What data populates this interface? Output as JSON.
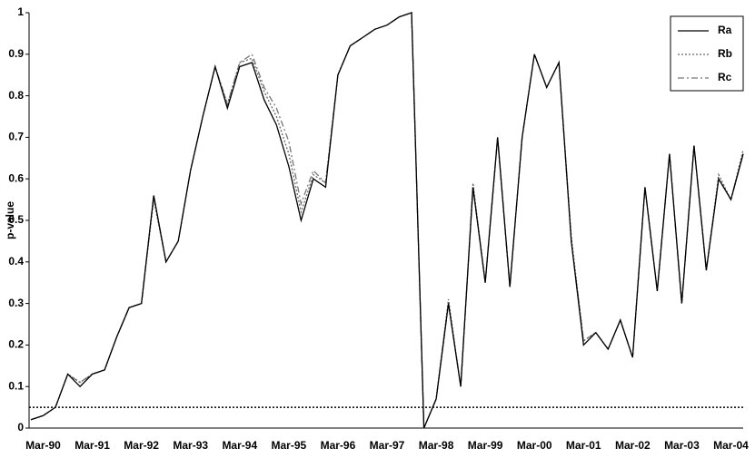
{
  "chart_data": {
    "type": "line",
    "y_label": "p-value",
    "categories": [
      null,
      "Mar-90",
      null,
      null,
      null,
      "Mar-91",
      null,
      null,
      null,
      "Mar-92",
      null,
      null,
      null,
      "Mar-93",
      null,
      null,
      null,
      "Mar-94",
      null,
      null,
      null,
      "Mar-95",
      null,
      null,
      null,
      "Mar-96",
      null,
      null,
      null,
      "Mar-97",
      null,
      null,
      null,
      "Mar-98",
      null,
      null,
      null,
      "Mar-99",
      null,
      null,
      null,
      "Mar-00",
      null,
      null,
      null,
      "Mar-01",
      null,
      null,
      null,
      "Mar-02",
      null,
      null,
      null,
      "Mar-03",
      null,
      null,
      null,
      "Mar-04",
      null
    ],
    "series": [
      {
        "name": "Ra",
        "color": "#000000",
        "dash": "solid",
        "values": [
          0.02,
          0.03,
          0.05,
          0.13,
          0.1,
          0.13,
          0.14,
          0.22,
          0.29,
          0.3,
          0.56,
          0.4,
          0.45,
          0.62,
          0.75,
          0.87,
          0.77,
          0.87,
          0.88,
          0.79,
          0.73,
          0.63,
          0.5,
          0.6,
          0.58,
          0.85,
          0.92,
          0.94,
          0.96,
          0.97,
          0.99,
          1.0,
          0.0,
          0.07,
          0.3,
          0.1,
          0.58,
          0.35,
          0.7,
          0.34,
          0.7,
          0.9,
          0.82,
          0.88,
          0.45,
          0.2,
          0.23,
          0.19,
          0.26,
          0.17,
          0.58,
          0.33,
          0.66,
          0.3,
          0.68,
          0.38,
          0.6,
          0.55,
          0.66
        ]
      },
      {
        "name": "Rb",
        "color": "#666666",
        "dash": "dotted",
        "values": [
          0.02,
          0.03,
          0.05,
          0.13,
          0.11,
          0.13,
          0.14,
          0.22,
          0.29,
          0.3,
          0.55,
          0.4,
          0.45,
          0.62,
          0.75,
          0.87,
          0.78,
          0.88,
          0.89,
          0.81,
          0.75,
          0.66,
          0.52,
          0.61,
          0.59,
          0.85,
          0.92,
          0.94,
          0.96,
          0.97,
          0.99,
          1.0,
          0.0,
          0.07,
          0.31,
          0.1,
          0.59,
          0.35,
          0.7,
          0.34,
          0.7,
          0.9,
          0.82,
          0.88,
          0.46,
          0.21,
          0.23,
          0.19,
          0.26,
          0.17,
          0.58,
          0.33,
          0.66,
          0.3,
          0.68,
          0.38,
          0.61,
          0.55,
          0.67
        ]
      },
      {
        "name": "Rc",
        "color": "#777777",
        "dash": "dashdot",
        "values": [
          0.02,
          0.03,
          0.05,
          0.13,
          0.11,
          0.13,
          0.14,
          0.22,
          0.29,
          0.3,
          0.56,
          0.4,
          0.45,
          0.62,
          0.75,
          0.87,
          0.78,
          0.88,
          0.9,
          0.82,
          0.77,
          0.69,
          0.54,
          0.62,
          0.59,
          0.85,
          0.92,
          0.94,
          0.96,
          0.97,
          0.99,
          1.0,
          0.0,
          0.07,
          0.3,
          0.1,
          0.58,
          0.35,
          0.7,
          0.34,
          0.7,
          0.9,
          0.82,
          0.88,
          0.45,
          0.21,
          0.23,
          0.19,
          0.26,
          0.17,
          0.58,
          0.33,
          0.66,
          0.3,
          0.68,
          0.38,
          0.6,
          0.55,
          0.66
        ]
      }
    ],
    "threshold": 0.05,
    "ylim": [
      0,
      1
    ],
    "yticks": [
      0,
      0.1,
      0.2,
      0.3,
      0.4,
      0.5,
      0.6,
      0.7,
      0.8,
      0.9,
      1
    ],
    "legend": "top-right"
  }
}
